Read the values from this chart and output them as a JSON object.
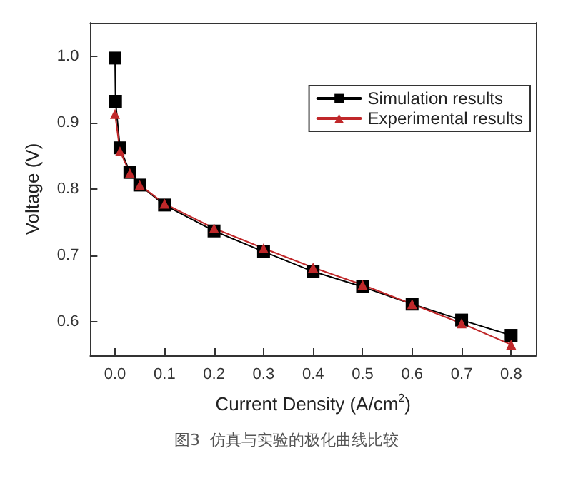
{
  "chart_data": {
    "type": "line",
    "xlabel": "Current Density (A/cm$^{2}$)",
    "ylabel": "Voltage (V)",
    "annotations": [
      "图3  仿真与实验的极化曲线比较"
    ],
    "xlim": [
      -0.05,
      0.85
    ],
    "xticks": [
      {
        "value": 0,
        "label": "0.0"
      },
      0.1,
      0.2,
      0.3,
      0.4,
      0.5,
      0.6,
      0.7,
      0.8
    ],
    "ylim": [
      0.55,
      1.05
    ],
    "yticks": [
      0.6,
      0.7,
      0.8,
      0.9,
      {
        "value": 1,
        "label": "1.0"
      }
    ],
    "grid": false,
    "legend": "top right",
    "line_style": "solid",
    "series": [
      {
        "name": "Simulation results",
        "color": "#000000",
        "marker": "square",
        "x": [
          0,
          0.001,
          0.01,
          0.03,
          0.05,
          0.1,
          0.2,
          0.3,
          0.4,
          0.5,
          0.6,
          0.7,
          0.8
        ],
        "values": [
          0.997,
          0.932,
          0.862,
          0.825,
          0.806,
          0.776,
          0.737,
          0.706,
          0.676,
          0.653,
          0.627,
          0.603,
          0.58
        ]
      },
      {
        "name": "Experimental results",
        "color": "#c0282a",
        "marker": "triangle",
        "x": [
          0,
          0.01,
          0.03,
          0.05,
          0.1,
          0.2,
          0.3,
          0.4,
          0.5,
          0.6,
          0.7,
          0.8
        ],
        "values": [
          0.913,
          0.857,
          0.824,
          0.806,
          0.778,
          0.741,
          0.711,
          0.682,
          0.656,
          0.627,
          0.598,
          0.566
        ]
      }
    ]
  }
}
